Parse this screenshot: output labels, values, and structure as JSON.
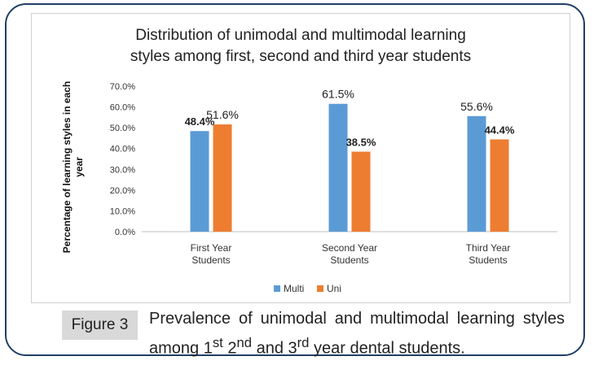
{
  "chart_data": {
    "type": "bar",
    "title_lines": [
      "Distribution of  unimodal  and multimodal  learning",
      "styles among  first, second  and third  year students"
    ],
    "ylabel_lines": [
      "Percentage of learning styles in each",
      "year"
    ],
    "xlabel": "",
    "categories": [
      [
        "First Year",
        "Students"
      ],
      [
        "Second Year",
        "Students"
      ],
      [
        "Third Year",
        "Students"
      ]
    ],
    "series": [
      {
        "name": "Multi",
        "values": [
          48.4,
          61.5,
          55.6
        ],
        "labels": [
          "48.4%",
          "61.5%",
          "55.6%"
        ],
        "color": "#5b9bd5"
      },
      {
        "name": "Uni",
        "values": [
          51.6,
          38.5,
          44.4
        ],
        "labels": [
          "51.6%",
          "38.5%",
          "44.4%"
        ],
        "color": "#ed7d31"
      }
    ],
    "bold_labels": [
      [
        true,
        false,
        false
      ],
      [
        false,
        true,
        true
      ]
    ],
    "ylim": [
      0,
      70
    ],
    "yticks": [
      "0.0%",
      "10.0%",
      "20.0%",
      "30.0%",
      "40.0%",
      "50.0%",
      "60.0%",
      "70.0%"
    ],
    "grid": false,
    "legend": "bottom-center"
  },
  "caption": {
    "label": "Figure 3",
    "text_prefix": "Prevalence of unimodal and multimodal learning styles among 1",
    "sup1": "st",
    "mid1": " 2",
    "sup2": "nd",
    "mid2": " and 3",
    "sup3": "rd",
    "text_suffix": " year dental students."
  },
  "colors": {
    "frame": "#1f3f66",
    "axis": "#bfbfbf"
  }
}
